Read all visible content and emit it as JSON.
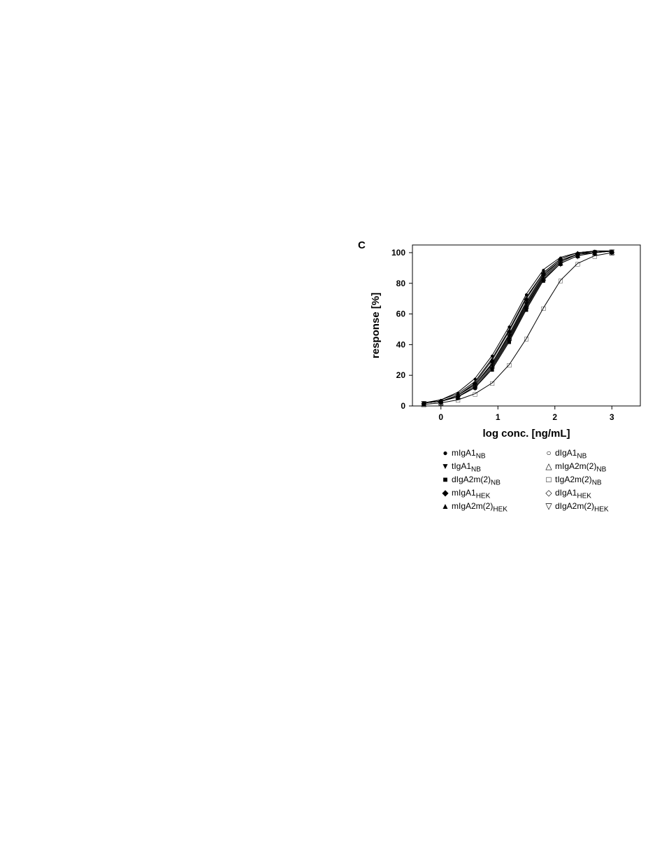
{
  "chart_data": {
    "type": "scatter",
    "panel_label": "C",
    "title": "",
    "xlabel": "log conc. [ng/mL]",
    "ylabel": "response [%]",
    "xlim": [
      -0.5,
      3.5
    ],
    "ylim": [
      0,
      105
    ],
    "x_ticks": [
      "0",
      "1",
      "2",
      "3"
    ],
    "y_ticks": [
      "0",
      "20",
      "40",
      "60",
      "80",
      "100"
    ],
    "x": [
      -0.3,
      0.0,
      0.3,
      0.6,
      0.9,
      1.2,
      1.5,
      1.8,
      2.1,
      2.4,
      2.7,
      3.0
    ],
    "series": [
      {
        "name": "mIgA1",
        "sub": "NB",
        "marker": "●",
        "values": [
          2,
          4,
          9,
          18,
          33,
          52,
          73,
          89,
          97,
          100,
          101,
          101
        ]
      },
      {
        "name": "dIgA1",
        "sub": "NB",
        "marker": "○",
        "values": [
          2,
          4,
          8,
          16,
          31,
          50,
          71,
          87,
          96,
          100,
          101,
          101
        ]
      },
      {
        "name": "tIgA1",
        "sub": "NB",
        "marker": "▼",
        "values": [
          2,
          3,
          7,
          14,
          28,
          46,
          67,
          85,
          95,
          99,
          101,
          101
        ]
      },
      {
        "name": "mIgA2m(2)",
        "sub": "NB",
        "marker": "△",
        "values": [
          2,
          3,
          7,
          14,
          27,
          45,
          66,
          84,
          94,
          99,
          101,
          101
        ]
      },
      {
        "name": "dIgA2m(2)",
        "sub": "NB",
        "marker": "■",
        "values": [
          2,
          3,
          6,
          12,
          24,
          42,
          63,
          82,
          93,
          98,
          100,
          101
        ]
      },
      {
        "name": "tIgA2m(2)",
        "sub": "NB",
        "marker": "□",
        "values": [
          1,
          2,
          4,
          8,
          15,
          27,
          44,
          64,
          82,
          93,
          98,
          100
        ]
      },
      {
        "name": "mIgA1",
        "sub": "HEK",
        "marker": "◆",
        "values": [
          2,
          3,
          7,
          15,
          30,
          49,
          70,
          87,
          96,
          100,
          101,
          101
        ]
      },
      {
        "name": "dIgA1",
        "sub": "HEK",
        "marker": "◇",
        "values": [
          2,
          3,
          7,
          14,
          28,
          47,
          68,
          86,
          95,
          99,
          101,
          101
        ]
      },
      {
        "name": "mIgA2m(2)",
        "sub": "HEK",
        "marker": "▲",
        "values": [
          2,
          3,
          6,
          13,
          26,
          44,
          65,
          84,
          94,
          99,
          100,
          101
        ]
      },
      {
        "name": "dIgA2m(2)",
        "sub": "HEK",
        "marker": "▽",
        "values": [
          2,
          3,
          6,
          12,
          25,
          43,
          64,
          83,
          93,
          98,
          100,
          101
        ]
      }
    ]
  }
}
